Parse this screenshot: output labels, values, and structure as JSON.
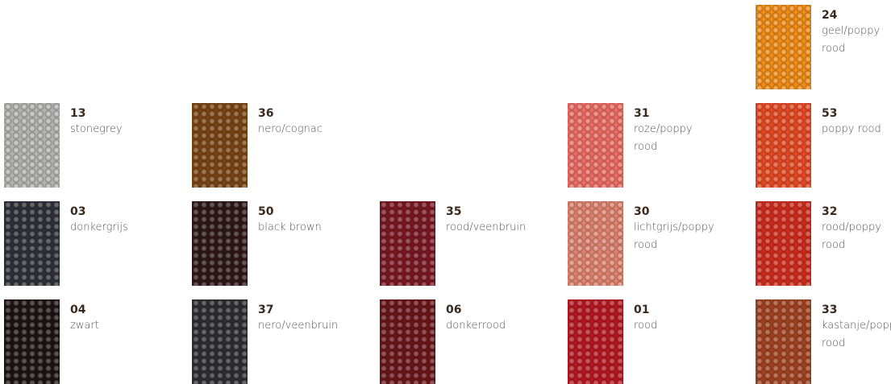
{
  "columns": [
    [
      {
        "code": "13",
        "name": "stonegrey",
        "color": "#b4b4b2"
      },
      {
        "code": "03",
        "name": "donkergrijs",
        "color": "#2e2f36"
      },
      {
        "code": "04",
        "name": "zwart",
        "color": "#1c1112"
      }
    ],
    [
      {
        "code": "36",
        "name": "nero/cognac",
        "color": "#7a4210"
      },
      {
        "code": "50",
        "name": "black brown",
        "color": "#2c1516"
      },
      {
        "code": "37",
        "name": "nero/veenbruin",
        "color": "#2c2b2e"
      }
    ],
    [
      {
        "code": "35",
        "name": "rood/veenbruin",
        "color": "#7a1420"
      },
      {
        "code": "06",
        "name": "donkerrood",
        "color": "#6a1216"
      }
    ],
    [
      {
        "code": "31",
        "name": "roze/poppy rood",
        "color": "#ee6a62"
      },
      {
        "code": "30",
        "name": "lichtgrijs/poppy rood",
        "color": "#e0826e"
      },
      {
        "code": "01",
        "name": "rood",
        "color": "#b8141e"
      }
    ],
    [
      {
        "code": "24",
        "name": "geel/poppy rood",
        "color": "#f48c12"
      },
      {
        "code": "53",
        "name": "poppy rood",
        "color": "#e8461e"
      },
      {
        "code": "32",
        "name": "rood/poppy rood",
        "color": "#d2281a"
      },
      {
        "code": "33",
        "name": "kastanje/poppy rood",
        "color": "#a2401e"
      }
    ]
  ]
}
